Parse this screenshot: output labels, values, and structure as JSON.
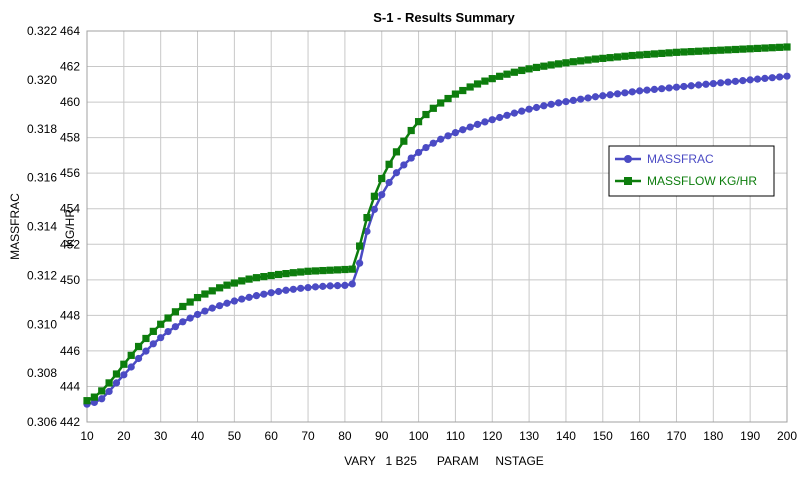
{
  "chart_data": {
    "type": "line",
    "title": "S-1 - Results Summary",
    "xlabel": "VARY   1 B25      PARAM     NSTAGE",
    "ylabel_left": "MASSFRAC",
    "ylabel_right": "KG/HR",
    "xlim": [
      10,
      200
    ],
    "xticks": [
      10,
      20,
      30,
      40,
      50,
      60,
      70,
      80,
      90,
      100,
      110,
      120,
      130,
      140,
      150,
      160,
      170,
      180,
      190,
      200
    ],
    "ylim_left": [
      0.306,
      0.322
    ],
    "yticks_left": [
      "0.306",
      "0.308",
      "0.310",
      "0.312",
      "0.314",
      "0.316",
      "0.318",
      "0.320",
      "0.322"
    ],
    "ylim_right": [
      442,
      464
    ],
    "yticks_right": [
      "442",
      "444",
      "446",
      "448",
      "450",
      "452",
      "454",
      "456",
      "458",
      "460",
      "462",
      "464"
    ],
    "grid": true,
    "legend_position": "right",
    "series": [
      {
        "name": "MASSFRAC",
        "axis": "left",
        "color": "#4b4bc4",
        "marker": "circle",
        "x_start": 10,
        "x_step": 2,
        "values": [
          0.30673,
          0.3068,
          0.30695,
          0.30725,
          0.3076,
          0.30793,
          0.30825,
          0.3086,
          0.3089,
          0.3092,
          0.30945,
          0.3097,
          0.3099,
          0.3101,
          0.31025,
          0.3104,
          0.31054,
          0.31066,
          0.31076,
          0.31086,
          0.31095,
          0.31103,
          0.3111,
          0.31117,
          0.31123,
          0.31129,
          0.31134,
          0.31139,
          0.31143,
          0.31147,
          0.3115,
          0.31153,
          0.31155,
          0.31157,
          0.31158,
          0.31159,
          0.31165,
          0.3125,
          0.3138,
          0.3147,
          0.3153,
          0.3158,
          0.3162,
          0.31652,
          0.3168,
          0.31703,
          0.31723,
          0.31741,
          0.31757,
          0.31771,
          0.31784,
          0.31796,
          0.31807,
          0.31818,
          0.31828,
          0.31837,
          0.31846,
          0.31855,
          0.31864,
          0.31872,
          0.3188,
          0.31887,
          0.31894,
          0.319,
          0.31906,
          0.31911,
          0.31916,
          0.31921,
          0.31926,
          0.31931,
          0.31935,
          0.31939,
          0.31943,
          0.31947,
          0.31951,
          0.31955,
          0.31958,
          0.31961,
          0.31964,
          0.31967,
          0.3197,
          0.31973,
          0.31976,
          0.31979,
          0.31982,
          0.31985,
          0.31988,
          0.31991,
          0.31994,
          0.31997,
          0.32,
          0.32003,
          0.32006,
          0.32009,
          0.32012,
          0.32015
        ]
      },
      {
        "name": "MASSFLOW     KG/HR",
        "axis": "right",
        "color": "#0d7d0d",
        "marker": "square",
        "x_start": 10,
        "x_step": 2,
        "values": [
          443.2,
          443.4,
          443.75,
          444.2,
          444.7,
          445.25,
          445.75,
          446.25,
          446.7,
          447.1,
          447.5,
          447.85,
          448.2,
          448.5,
          448.75,
          449.0,
          449.2,
          449.38,
          449.55,
          449.7,
          449.82,
          449.94,
          450.04,
          450.12,
          450.18,
          450.24,
          450.3,
          450.35,
          450.4,
          450.44,
          450.48,
          450.5,
          450.52,
          450.54,
          450.56,
          450.58,
          450.6,
          451.9,
          453.5,
          454.7,
          455.7,
          456.5,
          457.2,
          457.8,
          458.4,
          458.9,
          459.3,
          459.65,
          459.95,
          460.2,
          460.45,
          460.65,
          460.85,
          461.02,
          461.18,
          461.32,
          461.45,
          461.57,
          461.68,
          461.78,
          461.87,
          461.95,
          462.02,
          462.09,
          462.15,
          462.21,
          462.27,
          462.32,
          462.37,
          462.42,
          462.46,
          462.5,
          462.54,
          462.58,
          462.62,
          462.65,
          462.68,
          462.71,
          462.74,
          462.77,
          462.8,
          462.82,
          462.84,
          462.86,
          462.88,
          462.9,
          462.92,
          462.94,
          462.96,
          462.98,
          463.0,
          463.02,
          463.04,
          463.06,
          463.08,
          463.1
        ]
      }
    ]
  }
}
